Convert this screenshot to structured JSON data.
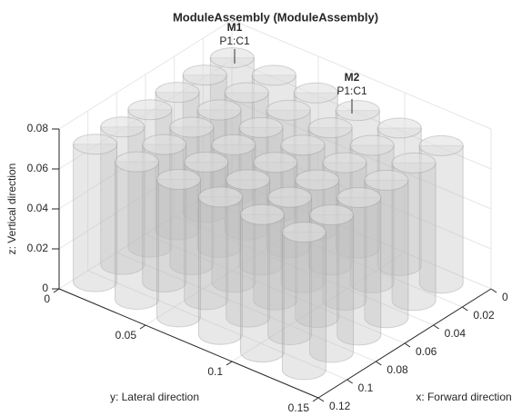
{
  "chart_data": {
    "type": "cylinders3d",
    "title": "ModuleAssembly (ModuleAssembly)",
    "xlabel": "x: Forward direction",
    "ylabel": "y: Lateral direction",
    "zlabel": "z: Vertical direction",
    "xlim": [
      0,
      0.12
    ],
    "ylim": [
      0,
      0.15
    ],
    "zlim": [
      0,
      0.08
    ],
    "xticks": [
      0,
      0.02,
      0.04,
      0.06,
      0.08,
      0.1,
      0.12
    ],
    "yticks": [
      0,
      0.05,
      0.1,
      0.15
    ],
    "zticks": [
      0,
      0.02,
      0.04,
      0.06,
      0.08
    ],
    "annotations": [
      {
        "name": "M1",
        "label": "P1:C1"
      },
      {
        "name": "M2",
        "label": "P1:C1"
      }
    ]
  }
}
